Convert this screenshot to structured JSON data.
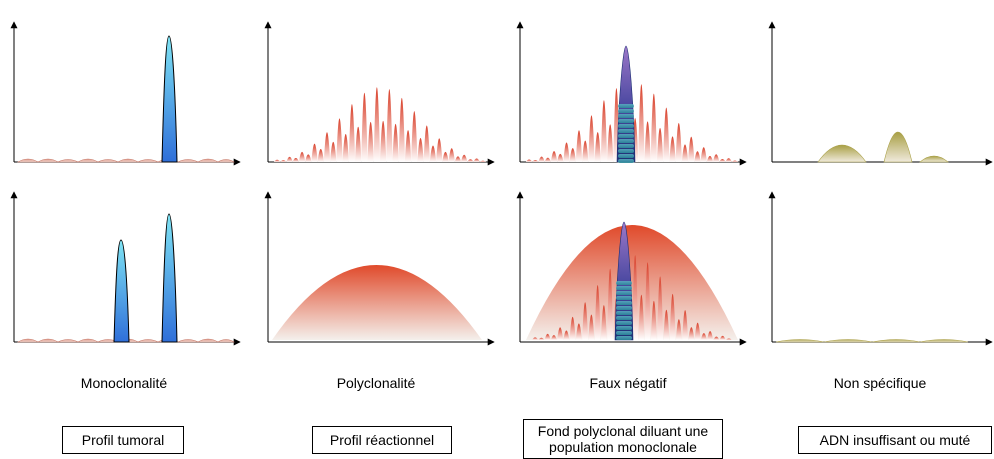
{
  "columns": [
    {
      "caption": "Monoclonalité",
      "box_lines": [
        "Profil tumoral"
      ]
    },
    {
      "caption": "Polyclonalité",
      "box_lines": [
        "Profil réactionnel"
      ]
    },
    {
      "caption": "Faux négatif",
      "box_lines": [
        "Fond polyclonal diluant une",
        "population monoclonale"
      ]
    },
    {
      "caption": "Non spécifique",
      "box_lines": [
        "ADN insuffisant ou muté"
      ]
    }
  ],
  "colors": {
    "axis": "#000000",
    "poly_top": "#d9402a",
    "poly_bottom": "#ffffff",
    "mono_top": "#6fd8f0",
    "mono_bottom": "#2f73d9",
    "mono_dark_top": "#8d6dc2",
    "mono_dark_bottom": "#1a2f7a",
    "mono_teal": "#3aa6b4",
    "nonspecific": "#a8a24a"
  }
}
